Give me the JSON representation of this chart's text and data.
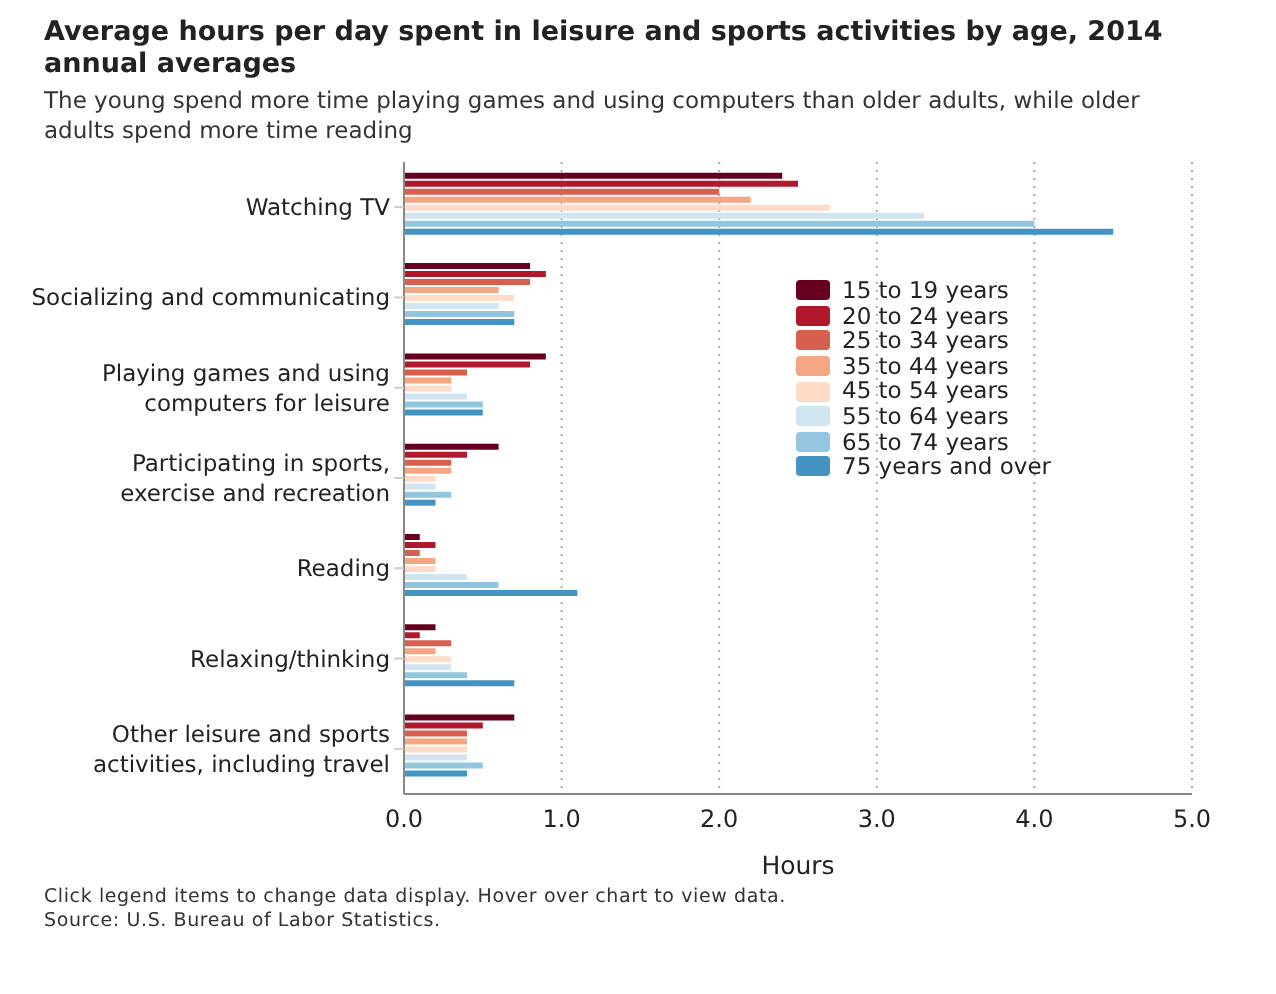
{
  "chart_data": {
    "type": "bar",
    "orientation": "horizontal",
    "title": "Average hours per day spent in leisure and sports activities by age, 2014 annual averages",
    "subtitle": "The young spend more time playing games and using computers than older adults, while older adults spend more time reading",
    "xlabel": "Hours",
    "categories": [
      "Watching TV",
      "Socializing and communicating",
      "Playing games and using computers for leisure",
      "Participating in sports, exercise and recreation",
      "Reading",
      "Relaxing/thinking",
      "Other leisure and sports activities, including travel"
    ],
    "series": [
      {
        "name": "15 to 19 years",
        "color": "#67001f",
        "values": [
          2.4,
          0.8,
          0.9,
          0.6,
          0.1,
          0.2,
          0.7
        ]
      },
      {
        "name": "20 to 24 years",
        "color": "#b2182b",
        "values": [
          2.5,
          0.9,
          0.8,
          0.4,
          0.2,
          0.1,
          0.5
        ]
      },
      {
        "name": "25 to 34 years",
        "color": "#d6604d",
        "values": [
          2.0,
          0.8,
          0.4,
          0.3,
          0.1,
          0.3,
          0.4
        ]
      },
      {
        "name": "35 to 44 years",
        "color": "#f4a582",
        "values": [
          2.2,
          0.6,
          0.3,
          0.3,
          0.2,
          0.2,
          0.4
        ]
      },
      {
        "name": "45 to 54 years",
        "color": "#fddbc7",
        "values": [
          2.7,
          0.7,
          0.3,
          0.2,
          0.2,
          0.3,
          0.4
        ]
      },
      {
        "name": "55 to 64 years",
        "color": "#d1e5f0",
        "values": [
          3.3,
          0.6,
          0.4,
          0.2,
          0.4,
          0.3,
          0.4
        ]
      },
      {
        "name": "65 to 74 years",
        "color": "#92c5de",
        "values": [
          4.0,
          0.7,
          0.5,
          0.3,
          0.6,
          0.4,
          0.5
        ]
      },
      {
        "name": "75 years and over",
        "color": "#4393c3",
        "values": [
          4.5,
          0.7,
          0.5,
          0.2,
          1.1,
          0.7,
          0.4
        ]
      }
    ],
    "xlim": [
      0,
      5
    ],
    "xticks": [
      {
        "value": 0,
        "label": "0.0"
      },
      {
        "value": 1,
        "label": "1.0"
      },
      {
        "value": 2,
        "label": "2.0"
      },
      {
        "value": 3,
        "label": "3.0"
      },
      {
        "value": 4,
        "label": "4.0"
      },
      {
        "value": 5,
        "label": "5.0"
      }
    ],
    "grid": "x",
    "legend": "right",
    "annotations": [
      "Click legend items to change data display. Hover over chart to view data.",
      "Source: U.S. Bureau of Labor Statistics."
    ]
  }
}
